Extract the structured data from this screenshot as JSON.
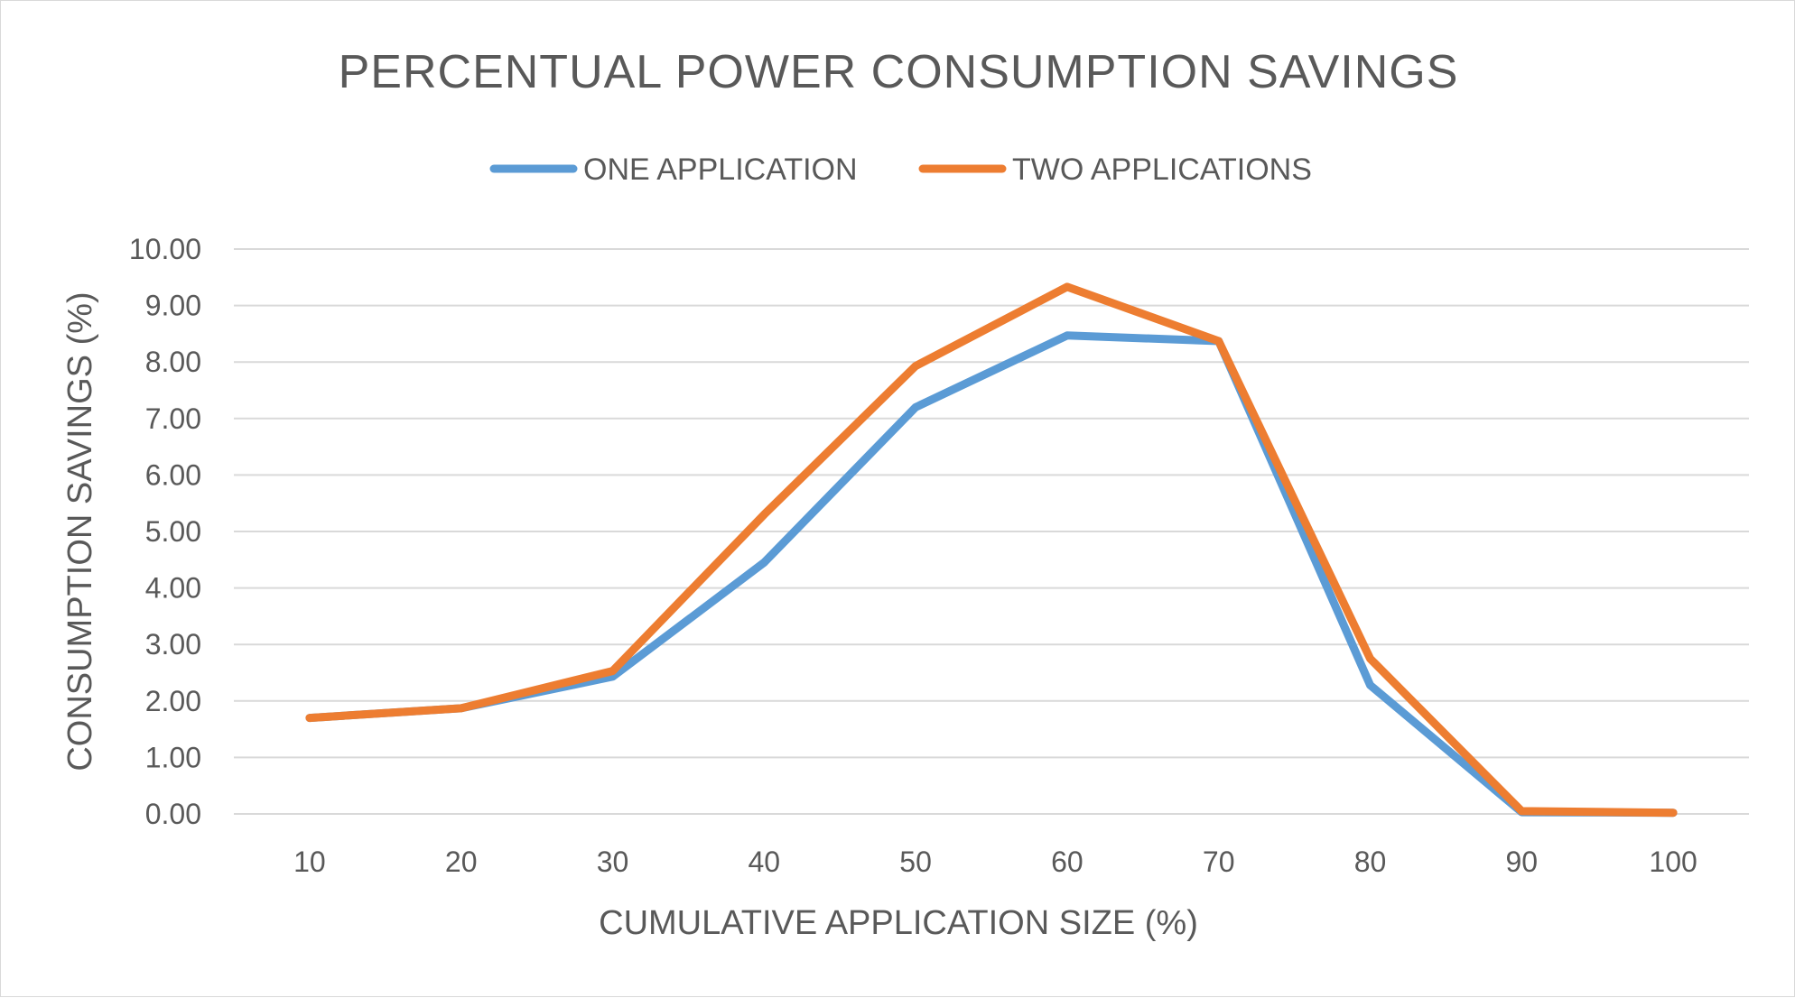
{
  "chart_data": {
    "type": "line",
    "title": "PERCENTUAL POWER CONSUMPTION SAVINGS",
    "xlabel": "CUMULATIVE APPLICATION SIZE (%)",
    "ylabel": "CONSUMPTION SAVINGS (%)",
    "categories": [
      "10",
      "20",
      "30",
      "40",
      "50",
      "60",
      "70",
      "80",
      "90",
      "100"
    ],
    "yticks": [
      "0.00",
      "1.00",
      "2.00",
      "3.00",
      "4.00",
      "5.00",
      "6.00",
      "7.00",
      "8.00",
      "9.00",
      "10.00"
    ],
    "ylim": [
      0,
      10
    ],
    "grid": true,
    "legend_position": "top",
    "series": [
      {
        "name": "ONE APPLICATION",
        "color": "#5b9bd5",
        "values": [
          1.7,
          1.87,
          2.43,
          4.45,
          7.2,
          8.47,
          8.37,
          2.28,
          0.03,
          0.02
        ]
      },
      {
        "name": "TWO APPLICATIONS",
        "color": "#ed7d31",
        "values": [
          1.7,
          1.87,
          2.53,
          5.3,
          7.93,
          9.33,
          8.37,
          2.75,
          0.05,
          0.02
        ]
      }
    ]
  }
}
